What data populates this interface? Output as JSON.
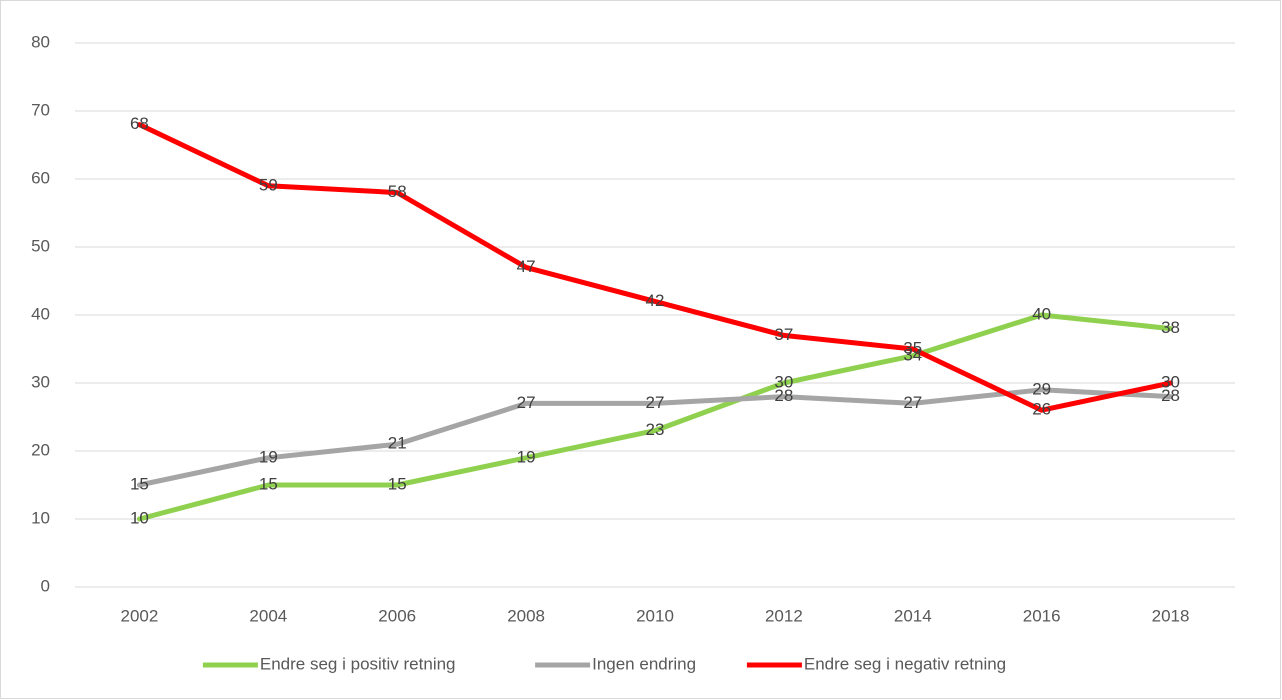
{
  "chart_data": {
    "type": "line",
    "categories": [
      "2002",
      "2004",
      "2006",
      "2008",
      "2010",
      "2012",
      "2014",
      "2016",
      "2018"
    ],
    "series": [
      {
        "name": "Endre seg i positiv retning",
        "color": "#8fd14f",
        "values": [
          10,
          15,
          15,
          19,
          23,
          30,
          34,
          40,
          38
        ]
      },
      {
        "name": "Ingen endring",
        "color": "#a5a5a5",
        "values": [
          15,
          19,
          21,
          27,
          27,
          28,
          27,
          29,
          28
        ]
      },
      {
        "name": "Endre seg i negativ retning",
        "color": "#ff0000",
        "values": [
          68,
          59,
          58,
          47,
          42,
          37,
          35,
          26,
          30
        ]
      }
    ],
    "ylim": [
      0,
      80
    ],
    "yticks": [
      0,
      10,
      20,
      30,
      40,
      50,
      60,
      70,
      80
    ],
    "grid": true,
    "legend": "bottom"
  }
}
